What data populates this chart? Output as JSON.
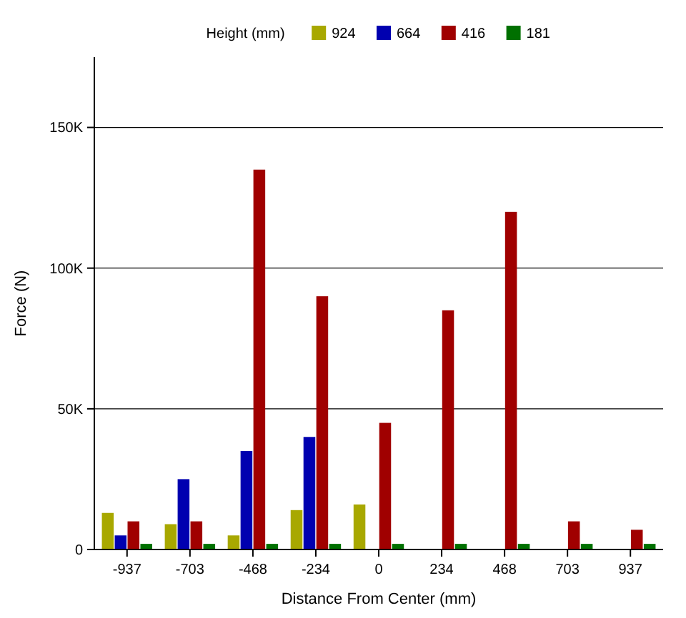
{
  "chart_data": {
    "type": "bar",
    "xlabel": "Distance From Center (mm)",
    "ylabel": "Force (N)",
    "legend_title": "Height (mm)",
    "categories": [
      "-937",
      "-703",
      "-468",
      "-234",
      "0",
      "234",
      "468",
      "703",
      "937"
    ],
    "series": [
      {
        "name": "924",
        "color": "#a8a800",
        "values": [
          13000,
          9000,
          5000,
          14000,
          16000,
          null,
          null,
          null,
          null
        ]
      },
      {
        "name": "664",
        "color": "#0000b0",
        "values": [
          5000,
          25000,
          35000,
          40000,
          null,
          null,
          null,
          null,
          null
        ]
      },
      {
        "name": "416",
        "color": "#a00000",
        "values": [
          10000,
          10000,
          135000,
          90000,
          45000,
          85000,
          120000,
          10000,
          7000
        ]
      },
      {
        "name": "181",
        "color": "#007000",
        "values": [
          2000,
          2000,
          2000,
          2000,
          2000,
          2000,
          2000,
          2000,
          2000
        ]
      }
    ],
    "ylim": [
      0,
      175000
    ],
    "yticks": [
      0,
      {
        "value": 50000,
        "label": "50K"
      },
      {
        "value": 100000,
        "label": "100K"
      },
      {
        "value": 150000,
        "label": "150K"
      }
    ],
    "grid": "y",
    "legend": "top"
  }
}
